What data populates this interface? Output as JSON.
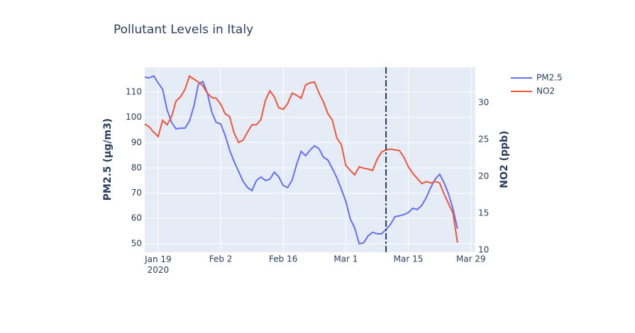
{
  "chart_data": {
    "type": "line",
    "title": "Pollutant Levels in Italy",
    "y_label": "PM2.5 (μg/m3)",
    "y2_label": "NO2 (ppb)",
    "x": [
      "2020-01-16",
      "2020-01-17",
      "2020-01-18",
      "2020-01-19",
      "2020-01-20",
      "2020-01-21",
      "2020-01-22",
      "2020-01-23",
      "2020-01-24",
      "2020-01-25",
      "2020-01-26",
      "2020-01-27",
      "2020-01-28",
      "2020-01-29",
      "2020-01-30",
      "2020-01-31",
      "2020-02-01",
      "2020-02-02",
      "2020-02-03",
      "2020-02-04",
      "2020-02-05",
      "2020-02-06",
      "2020-02-07",
      "2020-02-08",
      "2020-02-09",
      "2020-02-10",
      "2020-02-11",
      "2020-02-12",
      "2020-02-13",
      "2020-02-14",
      "2020-02-15",
      "2020-02-16",
      "2020-02-17",
      "2020-02-18",
      "2020-02-19",
      "2020-02-20",
      "2020-02-21",
      "2020-02-22",
      "2020-02-23",
      "2020-02-24",
      "2020-02-25",
      "2020-02-26",
      "2020-02-27",
      "2020-02-28",
      "2020-02-29",
      "2020-03-01",
      "2020-03-02",
      "2020-03-03",
      "2020-03-04",
      "2020-03-05",
      "2020-03-06",
      "2020-03-07",
      "2020-03-08",
      "2020-03-09",
      "2020-03-10",
      "2020-03-11",
      "2020-03-12",
      "2020-03-13",
      "2020-03-14",
      "2020-03-15",
      "2020-03-16",
      "2020-03-17",
      "2020-03-18",
      "2020-03-19",
      "2020-03-20",
      "2020-03-21",
      "2020-03-22",
      "2020-03-23",
      "2020-03-24",
      "2020-03-25",
      "2020-03-26"
    ],
    "series": [
      {
        "name": "PM2.5",
        "color": "#636efa",
        "axis": "y",
        "values": [
          115.9,
          115.6,
          116.4,
          113.6,
          111.1,
          103,
          98,
          95.4,
          95.7,
          95.7,
          98.5,
          104.4,
          113.1,
          114.2,
          109.7,
          102.1,
          98,
          97.4,
          92.9,
          87,
          82.5,
          78.6,
          74.7,
          72.2,
          71,
          75,
          76.4,
          75,
          75.5,
          78.3,
          76.4,
          73,
          72.2,
          75.2,
          81.4,
          86.5,
          84.8,
          87,
          88.7,
          87.6,
          84.2,
          83.1,
          79.7,
          76.1,
          71.6,
          66.8,
          59.8,
          56.2,
          50,
          50.3,
          53.1,
          54.5,
          53.9,
          53.9,
          55.6,
          57.6,
          60.7,
          61,
          61.5,
          62.3,
          64,
          63.5,
          65.1,
          68.2,
          72.2,
          75.5,
          77.5,
          74.1,
          69.6,
          63.7,
          55.9
        ]
      },
      {
        "name": "NO2",
        "color": "#ef553b",
        "axis": "y2",
        "values": [
          27.1,
          26.7,
          26,
          25.4,
          27.6,
          27,
          28.1,
          30.2,
          30.8,
          31.8,
          33.6,
          33.2,
          32.8,
          32.3,
          31.3,
          30.7,
          30.6,
          29.8,
          28.5,
          28.1,
          25.9,
          24.6,
          24.9,
          26,
          27,
          27,
          27.7,
          30.3,
          31.6,
          30.8,
          29.3,
          29.1,
          29.9,
          31.3,
          31,
          30.6,
          32.4,
          32.7,
          32.8,
          31.3,
          30.1,
          28.5,
          27.6,
          25.2,
          24.3,
          21.5,
          20.8,
          20.2,
          21.3,
          21.1,
          21,
          20.8,
          22.3,
          23.3,
          23.6,
          23.7,
          23.6,
          23.5,
          22.6,
          21.3,
          20.4,
          19.7,
          19,
          19.3,
          19.1,
          19.3,
          19.1,
          17.6,
          16.3,
          15,
          11
        ]
      }
    ],
    "xlim": [
      "2020-01-16",
      "2020-03-30"
    ],
    "xticks": [
      {
        "value": "2020-01-19",
        "label": "Jan 19\n2020"
      },
      {
        "value": "2020-02-02",
        "label": "Feb 2"
      },
      {
        "value": "2020-02-16",
        "label": "Feb 16"
      },
      {
        "value": "2020-03-01",
        "label": "Mar 1"
      },
      {
        "value": "2020-03-15",
        "label": "Mar 15"
      },
      {
        "value": "2020-03-29",
        "label": "Mar 29"
      }
    ],
    "ylim": [
      46.6,
      119.8
    ],
    "yticks": [
      50,
      60,
      70,
      80,
      90,
      100,
      110
    ],
    "y2lim": [
      9.7,
      34.8
    ],
    "y2ticks": [
      10,
      15,
      20,
      25,
      30
    ],
    "vline": {
      "x": "2020-03-10",
      "color": "#2a3f5f",
      "dash": "dashdot"
    },
    "grid": true,
    "legend": "top-right"
  }
}
